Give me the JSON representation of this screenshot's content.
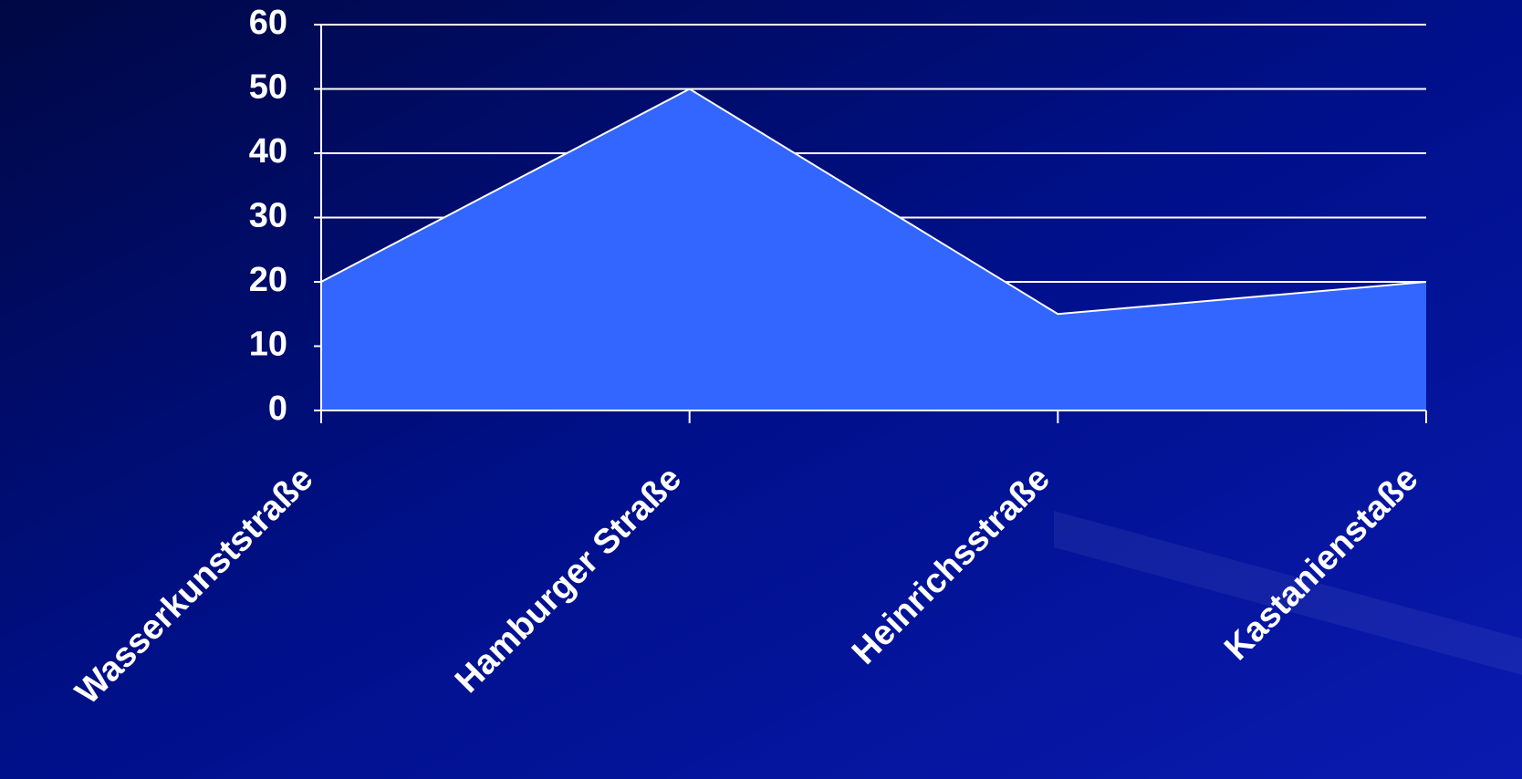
{
  "chart_data": {
    "type": "area",
    "categories": [
      "Wasserkunststraße",
      "Hamburger Straße",
      "Heinrichsstraße",
      "Kastanienstaße"
    ],
    "values": [
      20,
      50,
      15,
      20
    ],
    "color": "#3366ff",
    "ylim": [
      0,
      60
    ],
    "yticks": [
      0,
      10,
      20,
      30,
      40,
      50,
      60
    ],
    "grid": true
  }
}
